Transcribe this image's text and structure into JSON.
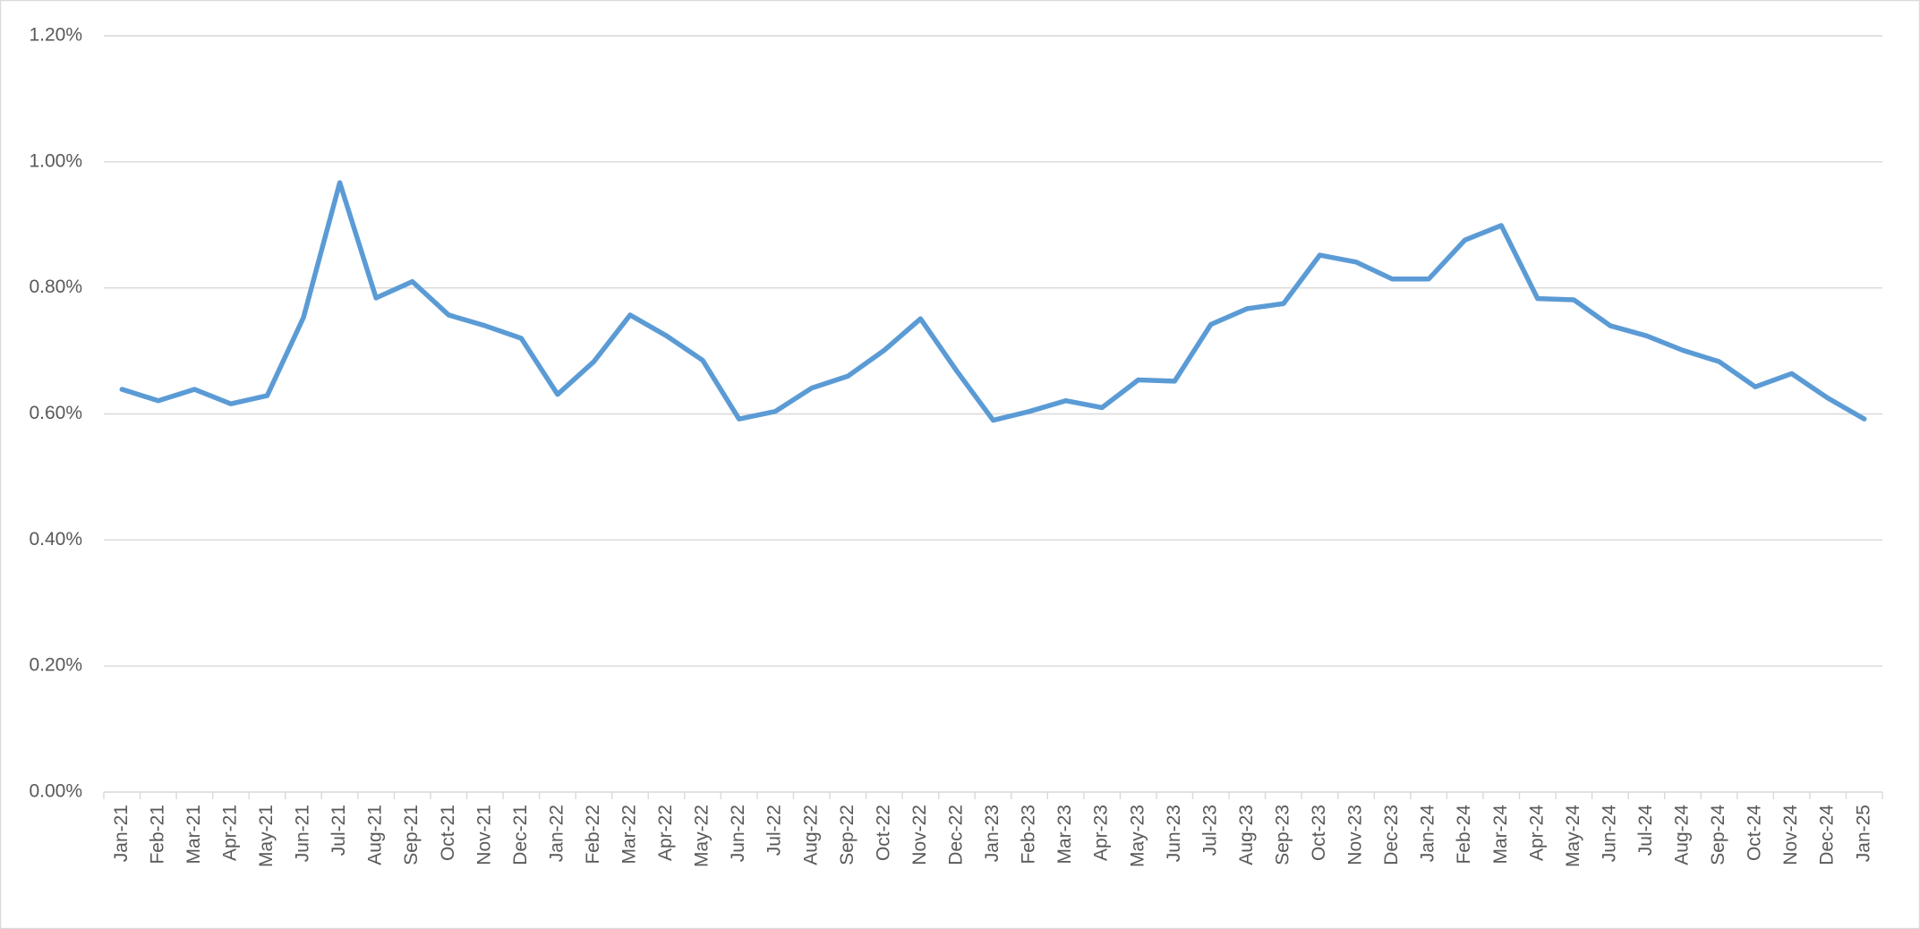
{
  "chart_data": {
    "type": "line",
    "categories": [
      "Jan-21",
      "Feb-21",
      "Mar-21",
      "Apr-21",
      "May-21",
      "Jun-21",
      "Jul-21",
      "Aug-21",
      "Sep-21",
      "Oct-21",
      "Nov-21",
      "Dec-21",
      "Jan-22",
      "Feb-22",
      "Mar-22",
      "Apr-22",
      "May-22",
      "Jun-22",
      "Jul-22",
      "Aug-22",
      "Sep-22",
      "Oct-22",
      "Nov-22",
      "Dec-22",
      "Jan-23",
      "Feb-23",
      "Mar-23",
      "Apr-23",
      "May-23",
      "Jun-23",
      "Jul-23",
      "Aug-23",
      "Sep-23",
      "Oct-23",
      "Nov-23",
      "Dec-23",
      "Jan-24",
      "Feb-24",
      "Mar-24",
      "Apr-24",
      "May-24",
      "Jun-24",
      "Jul-24",
      "Aug-24",
      "Sep-24",
      "Oct-24",
      "Nov-24",
      "Dec-24",
      "Jan-25"
    ],
    "values": [
      0.639,
      0.621,
      0.639,
      0.616,
      0.629,
      0.753,
      0.967,
      0.784,
      0.81,
      0.757,
      0.74,
      0.72,
      0.631,
      0.683,
      0.757,
      0.724,
      0.685,
      0.592,
      0.604,
      0.641,
      0.66,
      0.701,
      0.751,
      0.668,
      0.59,
      0.604,
      0.621,
      0.61,
      0.654,
      0.652,
      0.742,
      0.767,
      0.775,
      0.852,
      0.841,
      0.814,
      0.814,
      0.876,
      0.899,
      0.783,
      0.781,
      0.74,
      0.724,
      0.701,
      0.683,
      0.643,
      0.664,
      0.625,
      0.592
    ],
    "color": "#5b9bd5",
    "ylim": [
      0,
      1.2
    ],
    "yticks": [
      {
        "value": 0,
        "label": "0.00%"
      },
      {
        "value": 0.2,
        "label": "0.20%"
      },
      {
        "value": 0.4,
        "label": "0.40%"
      },
      {
        "value": 0.6,
        "label": "0.60%"
      },
      {
        "value": 0.8,
        "label": "0.80%"
      },
      {
        "value": 1.0,
        "label": "1.00%"
      },
      {
        "value": 1.2,
        "label": "1.20%"
      }
    ],
    "grid": true
  }
}
